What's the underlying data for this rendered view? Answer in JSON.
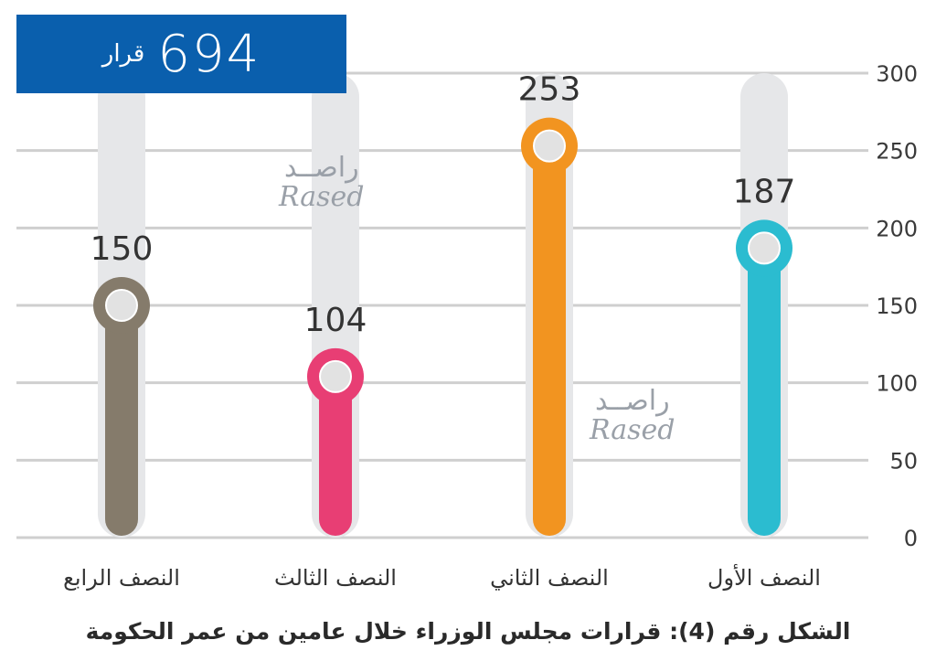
{
  "total": {
    "value": "694",
    "unit": "قرار"
  },
  "caption": "الشكل رقم (4): قرارات مجلس الوزراء خلال عامين من عمر الحكومة",
  "watermark": {
    "arabic": "راصــد",
    "latin": "Rased"
  },
  "colors": {
    "grid": "#cfcfcf",
    "track": "#e6e7e9",
    "total_box": "#0a5fad",
    "knob": "#e2e2e2"
  },
  "chart_data": {
    "type": "bar",
    "categories": [
      "النصف الأول",
      "النصف الثاني",
      "النصف الثالث",
      "النصف الرابع"
    ],
    "values": [
      187,
      253,
      104,
      150
    ],
    "data_labels": [
      "187",
      "253",
      "104",
      "150"
    ],
    "colors": [
      "#2bbcd0",
      "#f29420",
      "#e83e74",
      "#857b6b"
    ],
    "ylim": [
      0,
      300
    ],
    "yticks": [
      "0",
      "50",
      "100",
      "150",
      "200",
      "250",
      "300"
    ],
    "ytick_values": [
      0,
      50,
      100,
      150,
      200,
      250,
      300
    ],
    "yaxis_side": "right",
    "grid": true,
    "title": "",
    "xlabel": "",
    "ylabel": ""
  }
}
